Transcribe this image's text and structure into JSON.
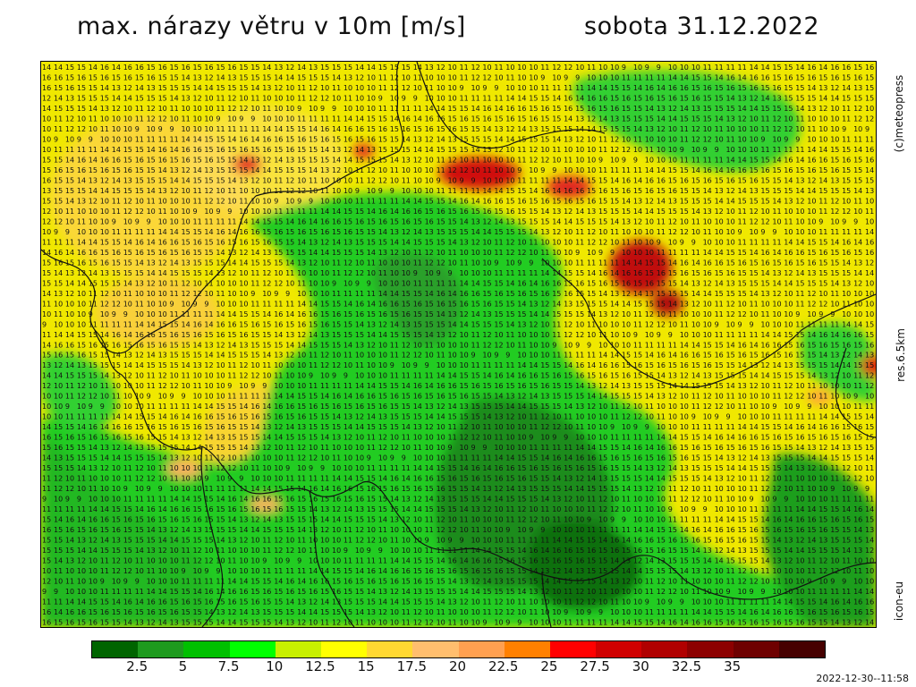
{
  "header": {
    "title_left": "max. nárazy větru v 10m [m/s]",
    "title_right": "sobota 31.12.2022"
  },
  "side": {
    "copyright": "(c)meteopress",
    "resolution": "res.6.5km",
    "model": "icon-eu"
  },
  "legend": {
    "colors": [
      "#006400",
      "#1e9a1e",
      "#00c000",
      "#00ff00",
      "#c8f000",
      "#ffff00",
      "#ffd832",
      "#ffbe6e",
      "#ffa050",
      "#ff8000",
      "#ff0000",
      "#d00000",
      "#b00000",
      "#8c0000",
      "#6e0000",
      "#460000"
    ],
    "tick_labels": [
      "2.5",
      "5",
      "7.5",
      "10",
      "12.5",
      "15",
      "17.5",
      "20",
      "22.5",
      "25",
      "27.5",
      "30",
      "32.5",
      "35"
    ]
  },
  "timestamp": "2022-12-30--11:58",
  "map": {
    "gust_grid_sample_row": [
      "14",
      "14",
      "15",
      "15",
      "14",
      "16",
      "14",
      "16",
      "16",
      "15",
      "16",
      "15",
      "16",
      "15",
      "16",
      "15",
      "16",
      "15",
      "15",
      "14",
      "13",
      "12",
      "14",
      "13",
      "15",
      "15",
      "15",
      "14",
      "14",
      "15",
      "15",
      "15",
      "14",
      "13",
      "12",
      "10",
      "11",
      "12",
      "10",
      "11",
      "10",
      "10",
      "10",
      "11",
      "12",
      "12",
      "10",
      "11",
      "10",
      "10",
      "9",
      "10",
      "9",
      "9",
      "10",
      "10",
      "10",
      "11",
      "11",
      "11",
      "11"
    ]
  }
}
